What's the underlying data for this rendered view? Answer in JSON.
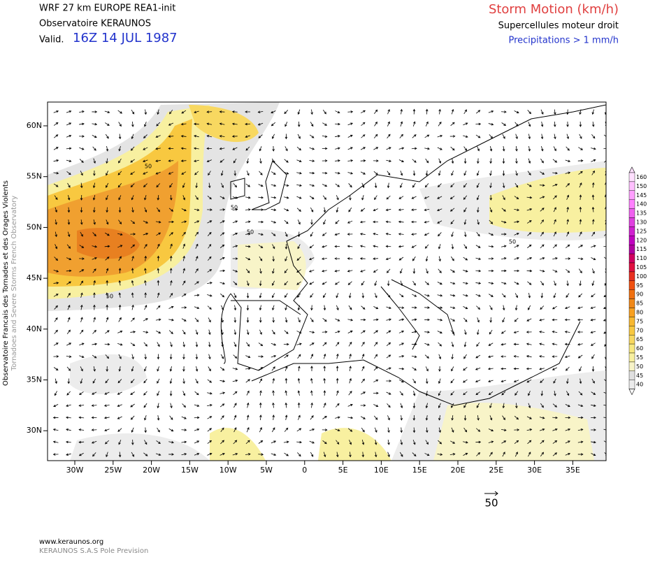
{
  "header": {
    "model": "WRF 27 km EUROPE  REA1-init",
    "source": "Observatoire KERAUNOS",
    "valid_prefix": "Valid.",
    "valid_time": "16Z 14 JUL 1987"
  },
  "product": {
    "title": "Storm Motion (km/h)",
    "subtitle": "Supercellules moteur droit",
    "note": "Precipitations > 1 mm/h"
  },
  "side": {
    "line1": "Observatoire Francais des Tornades et des Orages Violents",
    "line2": "Tornadoes and Severe Storms French Observatory"
  },
  "map": {
    "lat_labels": [
      "60N",
      "55N",
      "50N",
      "45N",
      "40N",
      "35N",
      "30N"
    ],
    "lon_labels": [
      "30W",
      "25W",
      "20W",
      "15W",
      "10W",
      "5W",
      "0",
      "5E",
      "10E",
      "15E",
      "20E",
      "25E",
      "30E",
      "35E"
    ],
    "contour_labels": [
      "50",
      "50",
      "50",
      "50",
      "50"
    ]
  },
  "reference_vector": {
    "label": "50"
  },
  "colorbar": {
    "labels": [
      160,
      150,
      145,
      140,
      135,
      130,
      125,
      120,
      115,
      110,
      105,
      100,
      95,
      90,
      85,
      80,
      75,
      70,
      65,
      60,
      55,
      50,
      45,
      40
    ],
    "colors": [
      "#ffe0ff",
      "#ffc0ff",
      "#ffa0ff",
      "#ff80ff",
      "#f060f0",
      "#e040e0",
      "#d020d0",
      "#c000c0",
      "#b000a0",
      "#d00060",
      "#e01040",
      "#e83020",
      "#f05010",
      "#f07010",
      "#f08818",
      "#f8a020",
      "#f8b830",
      "#f8c840",
      "#f8d860",
      "#f8e880",
      "#f8f0a0",
      "#f8f4c8",
      "#e0e0e0",
      "#ececec"
    ]
  },
  "footer": {
    "url": "www.keraunos.org",
    "company": "KERAUNOS S.A.S Pole Prevision"
  }
}
